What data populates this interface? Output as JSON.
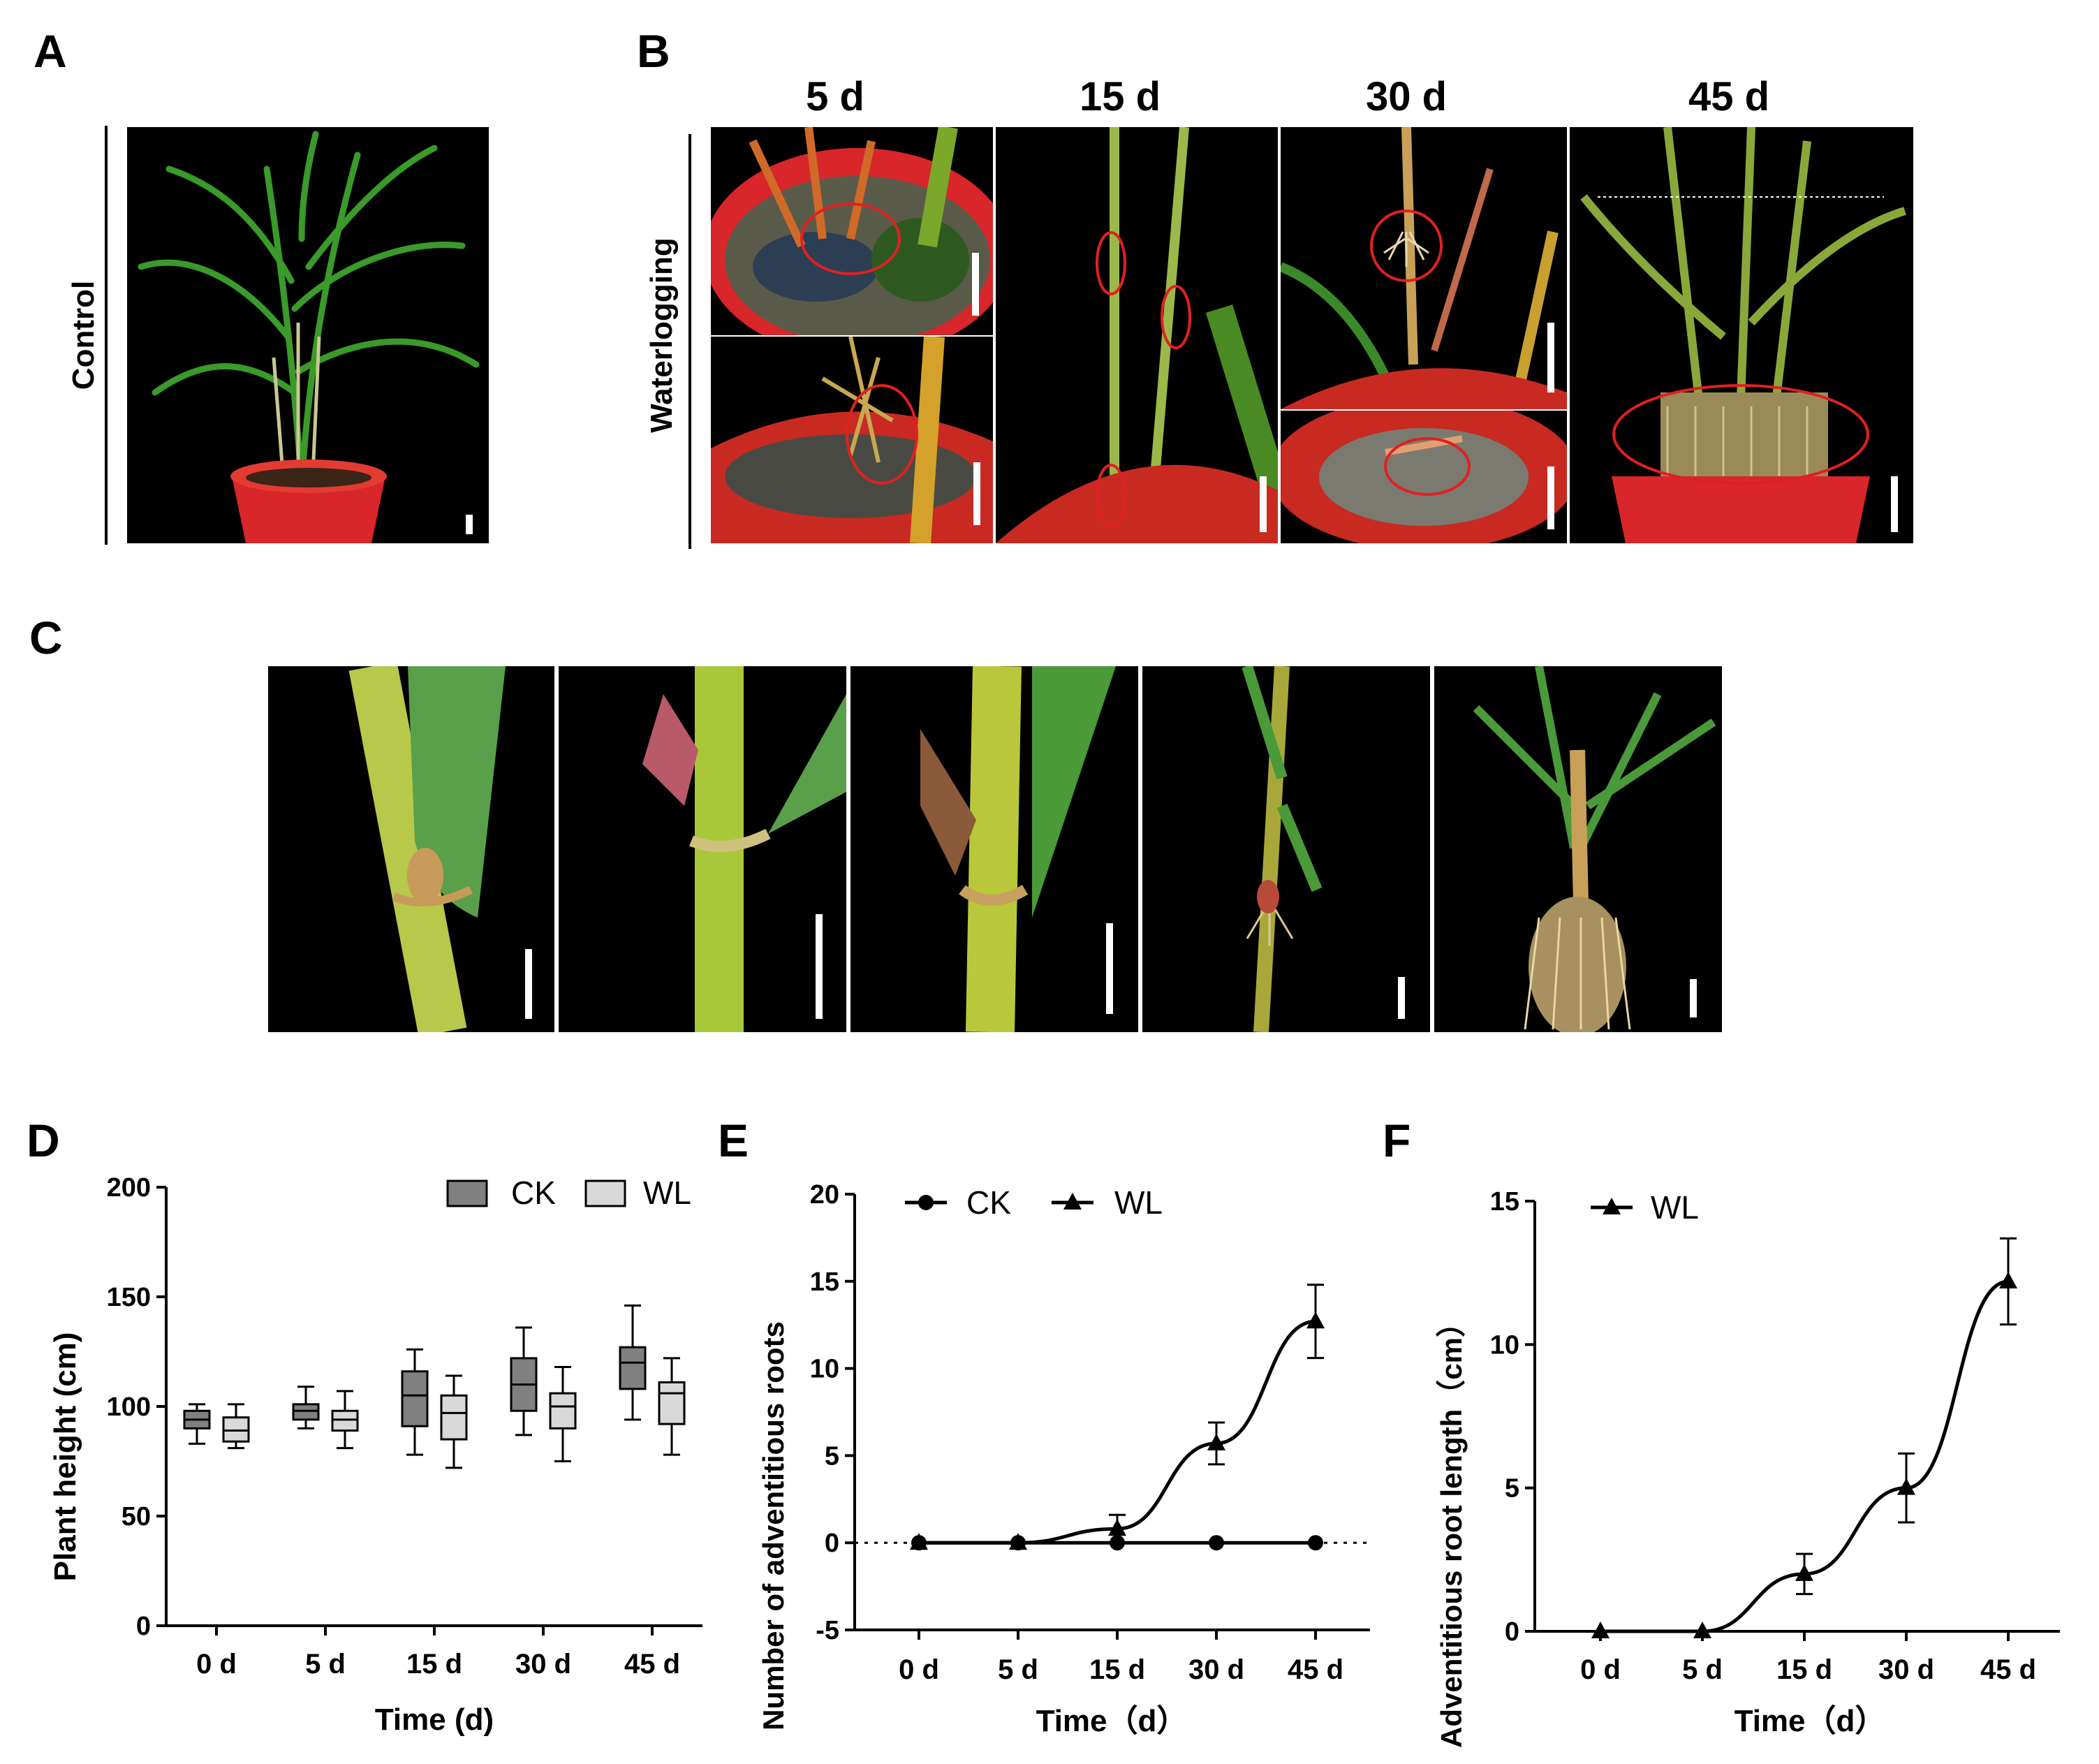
{
  "panels": {
    "A": {
      "letter": "A",
      "side_label": "Control"
    },
    "B": {
      "letter": "B",
      "side_label": "Waterlogging",
      "days": [
        "5 d",
        "15 d",
        "30 d",
        "45 d"
      ]
    },
    "C": {
      "letter": "C"
    }
  },
  "charts": {
    "D": {
      "letter": "D"
    },
    "E": {
      "letter": "E"
    },
    "F": {
      "letter": "F"
    }
  },
  "colors": {
    "ck_box": "#808080",
    "wl_box": "#d9d9d9",
    "line": "#000000",
    "photo_bg": "#000000"
  },
  "chart_data": [
    {
      "id": "D",
      "type": "boxplot",
      "title": "",
      "xlabel": "Time (d)",
      "ylabel": "Plant height (cm)",
      "categories": [
        "0 d",
        "5 d",
        "15 d",
        "30 d",
        "45 d"
      ],
      "ylim": [
        0,
        200
      ],
      "yticks": [
        0,
        50,
        100,
        150,
        200
      ],
      "legend": [
        "CK",
        "WL"
      ],
      "legend_position": "top-right",
      "series": [
        {
          "name": "CK",
          "boxes": [
            {
              "min": 83,
              "q1": 90,
              "median": 94,
              "q3": 98,
              "max": 101
            },
            {
              "min": 90,
              "q1": 94,
              "median": 98,
              "q3": 101,
              "max": 109
            },
            {
              "min": 78,
              "q1": 91,
              "median": 105,
              "q3": 116,
              "max": 126
            },
            {
              "min": 87,
              "q1": 98,
              "median": 110,
              "q3": 122,
              "max": 136
            },
            {
              "min": 94,
              "q1": 108,
              "median": 120,
              "q3": 127,
              "max": 146
            }
          ]
        },
        {
          "name": "WL",
          "boxes": [
            {
              "min": 81,
              "q1": 84,
              "median": 89,
              "q3": 95,
              "max": 101
            },
            {
              "min": 81,
              "q1": 89,
              "median": 94,
              "q3": 98,
              "max": 107
            },
            {
              "min": 72,
              "q1": 85,
              "median": 97,
              "q3": 105,
              "max": 114
            },
            {
              "min": 75,
              "q1": 90,
              "median": 100,
              "q3": 106,
              "max": 118
            },
            {
              "min": 78,
              "q1": 92,
              "median": 106,
              "q3": 111,
              "max": 122
            }
          ]
        }
      ]
    },
    {
      "id": "E",
      "type": "line",
      "title": "",
      "xlabel": "Time（d）",
      "ylabel": "Number of adventitious roots",
      "categories": [
        "0 d",
        "5 d",
        "15 d",
        "30 d",
        "45 d"
      ],
      "ylim": [
        -5,
        20
      ],
      "yticks": [
        -5,
        0,
        5,
        10,
        15,
        20
      ],
      "legend": [
        "CK",
        "WL"
      ],
      "legend_position": "top-left",
      "series": [
        {
          "name": "CK",
          "marker": "circle",
          "values": [
            0,
            0,
            0,
            0,
            0
          ],
          "errors": [
            0,
            0,
            0,
            0,
            0
          ]
        },
        {
          "name": "WL",
          "marker": "triangle",
          "values": [
            0,
            0,
            0.8,
            5.7,
            12.7
          ],
          "errors": [
            0,
            0,
            0.8,
            1.2,
            2.1
          ]
        }
      ]
    },
    {
      "id": "F",
      "type": "line",
      "title": "",
      "xlabel": "Time（d）",
      "ylabel": "Adventitious root length（cm）",
      "categories": [
        "0 d",
        "5 d",
        "15 d",
        "30 d",
        "45 d"
      ],
      "ylim": [
        0,
        15
      ],
      "yticks": [
        0,
        5,
        10,
        15
      ],
      "legend": [
        "WL"
      ],
      "legend_position": "top-left",
      "series": [
        {
          "name": "WL",
          "marker": "triangle",
          "values": [
            0,
            0,
            2.0,
            5.0,
            12.2
          ],
          "errors": [
            0,
            0,
            0.7,
            1.2,
            1.5
          ]
        }
      ]
    }
  ]
}
